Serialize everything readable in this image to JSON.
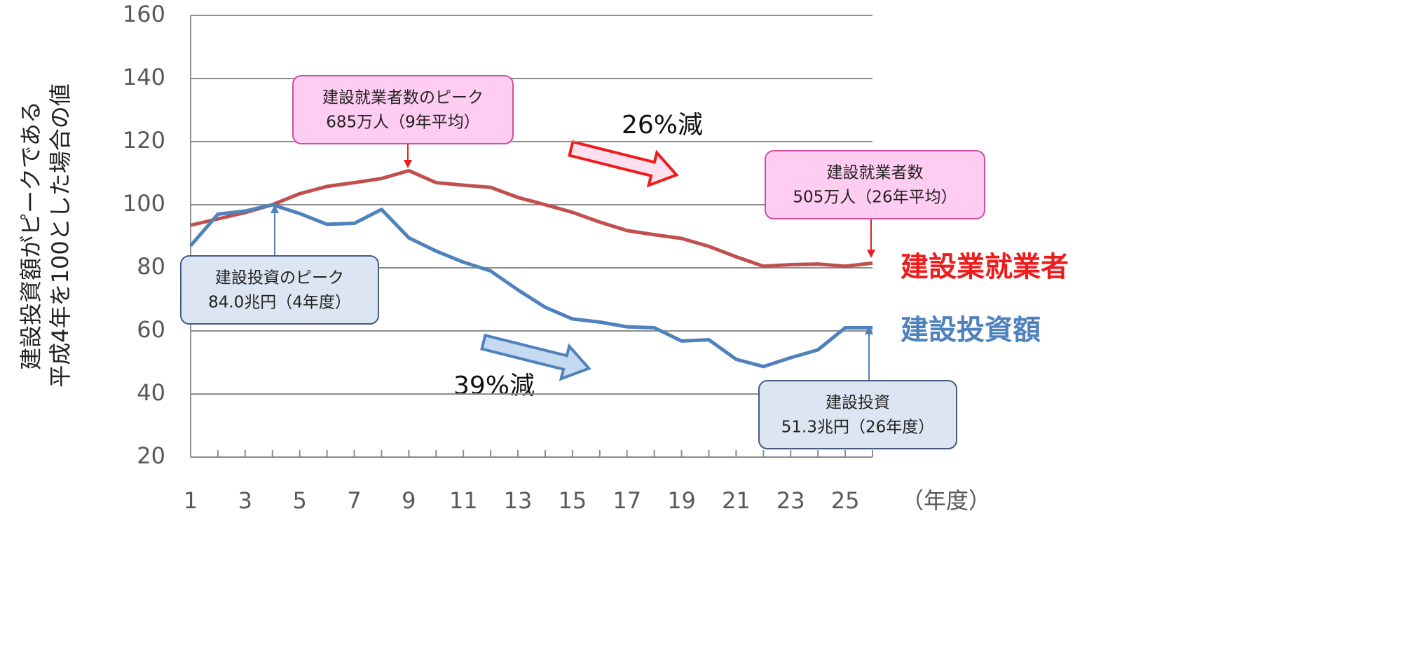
{
  "chart_data": {
    "type": "line",
    "ylabel": [
      "建設投資額がピークである",
      "平成4年を100とした場合の値"
    ],
    "xlabel": "（年度）",
    "x": [
      1,
      2,
      3,
      4,
      5,
      6,
      7,
      8,
      9,
      10,
      11,
      12,
      13,
      14,
      15,
      16,
      17,
      18,
      19,
      20,
      21,
      22,
      23,
      24,
      25,
      26
    ],
    "xlim": [
      1,
      26
    ],
    "xticks": [
      1,
      3,
      5,
      7,
      9,
      11,
      13,
      15,
      17,
      19,
      21,
      23,
      25
    ],
    "ylim": [
      20,
      160
    ],
    "yticks": [
      20,
      40,
      60,
      80,
      100,
      120,
      140,
      160
    ],
    "grid": true,
    "series": [
      {
        "name": "建設業就業者",
        "color": "#c0504d",
        "label_color": "#ee1c1c",
        "values": [
          93.5,
          95.5,
          97.5,
          100,
          103.5,
          105.8,
          107,
          108.3,
          110.8,
          107,
          106.2,
          105.5,
          102.3,
          100,
          97.6,
          94.5,
          91.8,
          90.5,
          89.3,
          86.8,
          83.5,
          80.5,
          81,
          81.2,
          80.5,
          81.5
        ]
      },
      {
        "name": "建設投資額",
        "color": "#4f81bd",
        "label_color": "#4f81bd",
        "values": [
          87,
          97,
          98,
          100,
          97.2,
          93.8,
          94.1,
          98.5,
          89.5,
          85.3,
          81.8,
          79,
          73,
          67.5,
          63.8,
          62.8,
          61.3,
          61,
          56.8,
          57.2,
          51,
          48.7,
          51.5,
          54,
          61,
          61
        ]
      }
    ],
    "annotations": [
      {
        "lines": [
          "建設就業者数のピーク",
          "685万人（9年平均）"
        ]
      },
      {
        "lines": [
          "建設就業者数",
          "505万人（26年平均）"
        ]
      },
      {
        "lines": [
          "建設投資のピーク",
          "84.0兆円（4年度）"
        ]
      },
      {
        "lines": [
          "建設投資",
          "51.3兆円（26年度）"
        ]
      }
    ],
    "change_labels": [
      "26%減",
      "39%減"
    ]
  }
}
